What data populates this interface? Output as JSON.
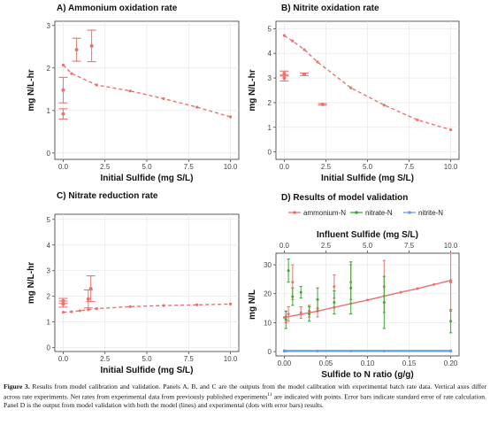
{
  "chart_data": [
    {
      "panel": "A",
      "type": "line",
      "title": "A) Ammonium oxidation rate",
      "xlabel": "Initial Sulfide (mg S/L)",
      "ylabel": "mg N/L-hr",
      "xlim": [
        -0.5,
        10.5
      ],
      "ylim": [
        -0.15,
        3.1
      ],
      "xticks": [
        0.0,
        2.5,
        5.0,
        7.5,
        10.0
      ],
      "xtick_labels": [
        "0.0",
        "2.5",
        "5.0",
        "7.5",
        "10.0"
      ],
      "yticks": [
        0,
        1,
        2,
        3
      ],
      "ytick_labels": [
        "0",
        "1",
        "2",
        "3"
      ],
      "grid": true,
      "series": [
        {
          "style": "dashed-line-model",
          "x": [
            0.0,
            0.5,
            2.0,
            4.0,
            6.0,
            8.0,
            10.0
          ],
          "y": [
            2.07,
            1.87,
            1.6,
            1.46,
            1.28,
            1.08,
            0.85
          ]
        },
        {
          "style": "points-with-error-bars",
          "x": [
            0.0,
            0.0,
            0.8,
            1.7
          ],
          "y": [
            1.48,
            0.92,
            2.43,
            2.52
          ],
          "err": [
            0.3,
            0.12,
            0.27,
            0.37
          ]
        }
      ]
    },
    {
      "panel": "B",
      "type": "line",
      "title": "B) Nitrite oxidation rate",
      "xlabel": "Initial Sulfide (mg S/L)",
      "ylabel": "mg N/L-hr",
      "xlim": [
        -0.5,
        10.5
      ],
      "ylim": [
        -0.3,
        5.3
      ],
      "xticks": [
        0.0,
        2.5,
        5.0,
        7.5,
        10.0
      ],
      "xtick_labels": [
        "0.0",
        "2.5",
        "5.0",
        "7.5",
        "10.0"
      ],
      "yticks": [
        0,
        1,
        2,
        3,
        4,
        5
      ],
      "ytick_labels": [
        "0",
        "1",
        "2",
        "3",
        "4",
        "5"
      ],
      "grid": true,
      "series": [
        {
          "style": "dashed-line-model",
          "x": [
            0.0,
            0.5,
            1.2,
            2.0,
            4.0,
            6.0,
            8.0,
            10.0
          ],
          "y": [
            4.72,
            4.5,
            4.15,
            3.65,
            2.6,
            1.9,
            1.3,
            0.9
          ]
        },
        {
          "style": "points-with-error-bars",
          "x": [
            0.0,
            0.0,
            1.2,
            2.3
          ],
          "y": [
            3.0,
            3.18,
            3.15,
            1.93
          ],
          "err": [
            0.12,
            0.1,
            0.05,
            0.03
          ]
        }
      ]
    },
    {
      "panel": "C",
      "type": "line",
      "title": "C) Nitrate reduction rate",
      "xlabel": "Initial Sulfide (mg S/L)",
      "ylabel": "mg N/L-hr",
      "xlim": [
        -0.5,
        10.5
      ],
      "ylim": [
        -0.15,
        5.2
      ],
      "xticks": [
        0.0,
        2.5,
        5.0,
        7.5,
        10.0
      ],
      "xtick_labels": [
        "0.0",
        "2.5",
        "5.0",
        "7.5",
        "10.0"
      ],
      "yticks": [
        0,
        1,
        2,
        3,
        4,
        5
      ],
      "ytick_labels": [
        "0",
        "1",
        "2",
        "3",
        "4",
        "5"
      ],
      "grid": true,
      "series": [
        {
          "style": "dashed-line-model",
          "x": [
            0.0,
            0.5,
            1.0,
            1.5,
            2.0,
            4.0,
            6.0,
            8.0,
            10.0
          ],
          "y": [
            1.38,
            1.4,
            1.44,
            1.48,
            1.52,
            1.6,
            1.64,
            1.67,
            1.7
          ]
        },
        {
          "style": "points-with-error-bars",
          "x": [
            0.0,
            0.0,
            1.5,
            1.65
          ],
          "y": [
            1.7,
            1.82,
            1.9,
            2.3
          ],
          "err": [
            0.12,
            0.1,
            0.35,
            0.5
          ]
        }
      ]
    },
    {
      "panel": "D",
      "type": "line",
      "title": "D) Results of model validation",
      "xlabel": "Sulfide to N ratio (g/g)",
      "x2label": "Influent Sulfide (mg S/L)",
      "ylabel": "mg N/L",
      "xlim": [
        -0.01,
        0.21
      ],
      "ylim": [
        -1.5,
        34
      ],
      "x2lim": [
        -0.5,
        10.5
      ],
      "xticks": [
        0.0,
        0.05,
        0.1,
        0.15,
        0.2
      ],
      "xtick_labels": [
        "0.00",
        "0.05",
        "0.10",
        "0.15",
        "0.20"
      ],
      "x2ticks": [
        0.0,
        2.5,
        5.0,
        7.5,
        10.0
      ],
      "x2tick_labels": [
        "0.0",
        "2.5",
        "5.0",
        "7.5",
        "10.0"
      ],
      "yticks": [
        0,
        10,
        20,
        30
      ],
      "ytick_labels": [
        "0",
        "10",
        "20",
        "30"
      ],
      "grid": true,
      "legend_position": "top",
      "series": [
        {
          "name": "ammonium-N",
          "color": "#e8736e",
          "line_x": [
            0.0,
            0.02,
            0.04,
            0.06,
            0.08,
            0.1,
            0.12,
            0.14,
            0.16,
            0.18,
            0.2
          ],
          "line_y": [
            11.8,
            12.9,
            14.0,
            15.3,
            16.6,
            17.8,
            19.2,
            20.5,
            21.8,
            23.2,
            24.6
          ],
          "x": [
            0.002,
            0.005,
            0.01,
            0.02,
            0.03,
            0.04,
            0.06,
            0.08,
            0.12,
            0.2
          ],
          "y": [
            12.0,
            13.0,
            24.0,
            13.5,
            14.0,
            15.0,
            22.5,
            24.0,
            22.5,
            24.0
          ],
          "err": [
            2.0,
            2.5,
            6.0,
            2.0,
            2.0,
            3.0,
            4.0,
            6.0,
            9.0,
            10.0
          ]
        },
        {
          "name": "nitrate-N",
          "color": "#3aa935",
          "line_x": [
            0.0,
            0.2
          ],
          "line_y": [
            0.3,
            0.3
          ],
          "x": [
            0.002,
            0.005,
            0.01,
            0.02,
            0.03,
            0.04,
            0.06,
            0.08,
            0.12,
            0.2
          ],
          "y": [
            11.0,
            28.0,
            19.0,
            20.5,
            13.0,
            18.0,
            17.0,
            22.0,
            17.0,
            10.5
          ],
          "err": [
            3.0,
            4.0,
            3.0,
            2.0,
            2.5,
            4.0,
            4.0,
            9.0,
            9.0,
            4.0
          ]
        },
        {
          "name": "nitrite-N",
          "color": "#619cff",
          "line_x": [
            0.0,
            0.2
          ],
          "line_y": [
            0.1,
            0.1
          ],
          "x": [
            0.002,
            0.04,
            0.08,
            0.12,
            0.2
          ],
          "y": [
            0.2,
            0.2,
            0.2,
            0.2,
            0.2
          ],
          "err": [
            0.2,
            0.2,
            0.2,
            0.2,
            0.2
          ]
        }
      ]
    }
  ],
  "caption": {
    "label": "Figure 3.",
    "text": "Results from model calibration and validation. Panels A, B, and C are the outputs from the model calibration with experimental batch rate data. Vertical axes differ across rate experiments. Net rates from experimental data from previously published experiments",
    "ref": "11",
    "text2": "are indicated with points. Error bars indicate standard error of rate calculation. Panel D is the output from model validation with both the model (lines) and experimental (dots with error bars) results."
  },
  "colors": {
    "model_line": "#e8736e",
    "panel_bg": "#ffffff",
    "grid": "#e3e3e3"
  }
}
